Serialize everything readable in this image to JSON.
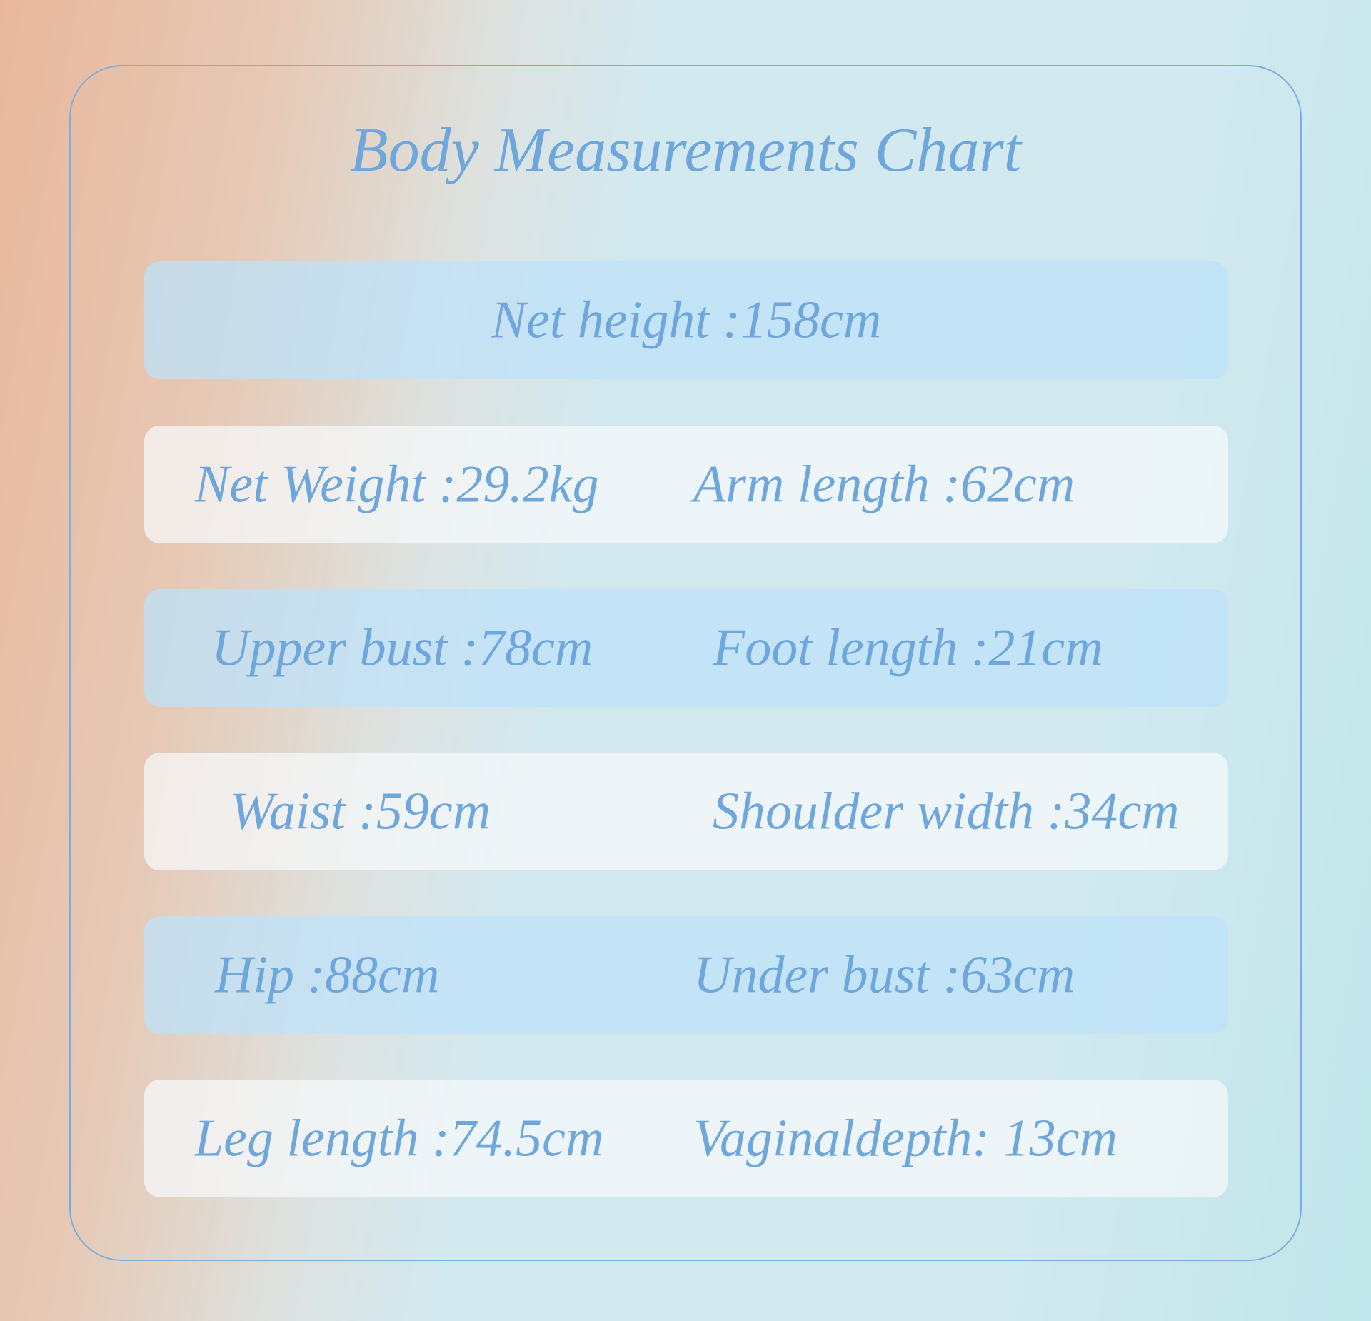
{
  "title": "Body Measurements Chart",
  "colors": {
    "text": "#6fa6dc",
    "border": "#7aaee0"
  },
  "rows": [
    {
      "left": "Net height :158cm"
    },
    {
      "left": "Net Weight :29.2kg",
      "right": "Arm length :62cm"
    },
    {
      "left": "Upper bust :78cm",
      "right": "Foot length :21cm"
    },
    {
      "left": "Waist :59cm",
      "right": "Shoulder width :34cm"
    },
    {
      "left": "Hip :88cm",
      "right": "Under bust :63cm"
    },
    {
      "left": "Leg length :74.5cm",
      "right": "Vaginaldepth: 13cm"
    }
  ]
}
